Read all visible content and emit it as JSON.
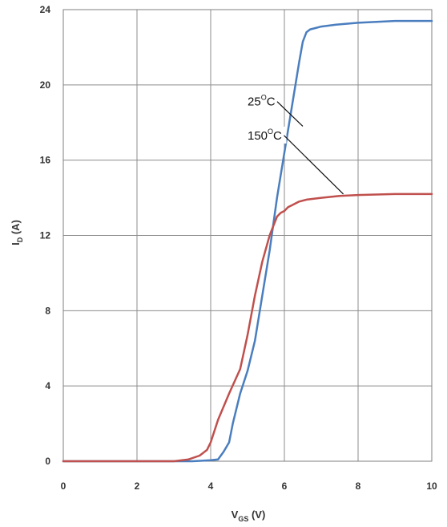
{
  "chart_data": {
    "type": "line",
    "xlabel": {
      "main": "V",
      "sub": "GS",
      "unit": " (V)"
    },
    "ylabel": {
      "main": "I",
      "sub": "D",
      "unit": " (A)"
    },
    "xlim": [
      0,
      10
    ],
    "ylim": [
      0,
      24
    ],
    "xticks": [
      "0",
      "2",
      "4",
      "6",
      "8",
      "10"
    ],
    "yticks": [
      "0",
      "4",
      "8",
      "12",
      "16",
      "20",
      "24"
    ],
    "grid": true,
    "legend": "none",
    "series": [
      {
        "name": "25°C",
        "label": {
          "num": "25",
          "sup": "O",
          "unit": "C"
        },
        "color": "#4a7ebf",
        "x": [
          0,
          3.5,
          4.0,
          4.2,
          4.35,
          4.5,
          4.6,
          4.7,
          4.8,
          5.0,
          5.2,
          5.4,
          5.6,
          5.8,
          6.0,
          6.2,
          6.4,
          6.5,
          6.6,
          6.7,
          6.8,
          7.0,
          7.4,
          8.0,
          9.0,
          10.0
        ],
        "values": [
          0,
          0,
          0.05,
          0.1,
          0.5,
          1.0,
          2.0,
          2.8,
          3.6,
          4.8,
          6.4,
          8.8,
          11.2,
          14.0,
          16.4,
          18.8,
          21.2,
          22.3,
          22.8,
          22.95,
          23.0,
          23.1,
          23.2,
          23.3,
          23.4,
          23.4
        ]
      },
      {
        "name": "150°C",
        "label": {
          "num": "150",
          "sup": "O",
          "unit": "C"
        },
        "color": "#c0504d",
        "x": [
          0,
          3.0,
          3.4,
          3.7,
          3.9,
          4.0,
          4.2,
          4.5,
          4.8,
          5.0,
          5.2,
          5.4,
          5.6,
          5.8,
          5.9,
          6.0,
          6.1,
          6.2,
          6.4,
          6.6,
          7.0,
          7.5,
          8.0,
          9.0,
          10.0
        ],
        "values": [
          0,
          0,
          0.1,
          0.3,
          0.6,
          1.0,
          2.2,
          3.6,
          4.9,
          6.7,
          8.8,
          10.6,
          12.0,
          13.0,
          13.2,
          13.3,
          13.5,
          13.6,
          13.8,
          13.9,
          14.0,
          14.1,
          14.15,
          14.2,
          14.2
        ]
      }
    ],
    "annotations": [
      {
        "series": 0,
        "text_x": 5.0,
        "text_y": 18.9,
        "point_x": 6.5,
        "point_y": 17.8
      },
      {
        "series": 1,
        "text_x": 5.0,
        "text_y": 17.1,
        "point_x": 7.6,
        "point_y": 14.2
      }
    ]
  }
}
